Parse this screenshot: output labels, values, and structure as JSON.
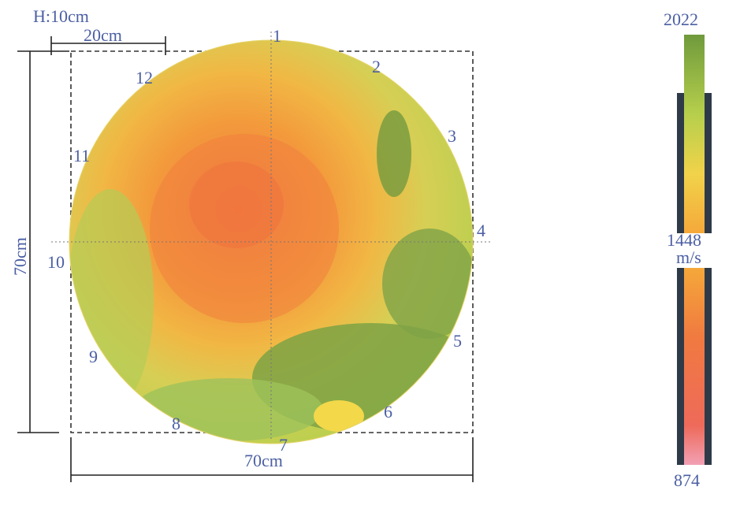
{
  "dimensions": {
    "height_note": "H:10cm",
    "inner_width": "20cm",
    "side": "70cm",
    "bottom": "70cm"
  },
  "points": [
    "1",
    "2",
    "3",
    "4",
    "5",
    "6",
    "7",
    "8",
    "9",
    "10",
    "11",
    "12"
  ],
  "scale": {
    "max": "2022",
    "mid": "1448",
    "unit": "m/s",
    "min": "874"
  },
  "colors": {
    "low": "#f08a8a",
    "mid_low": "#f07a40",
    "mid": "#f5b33a",
    "mid_high": "#c9d45a",
    "high": "#6f9a3c",
    "label": "#4b5fa3"
  }
}
